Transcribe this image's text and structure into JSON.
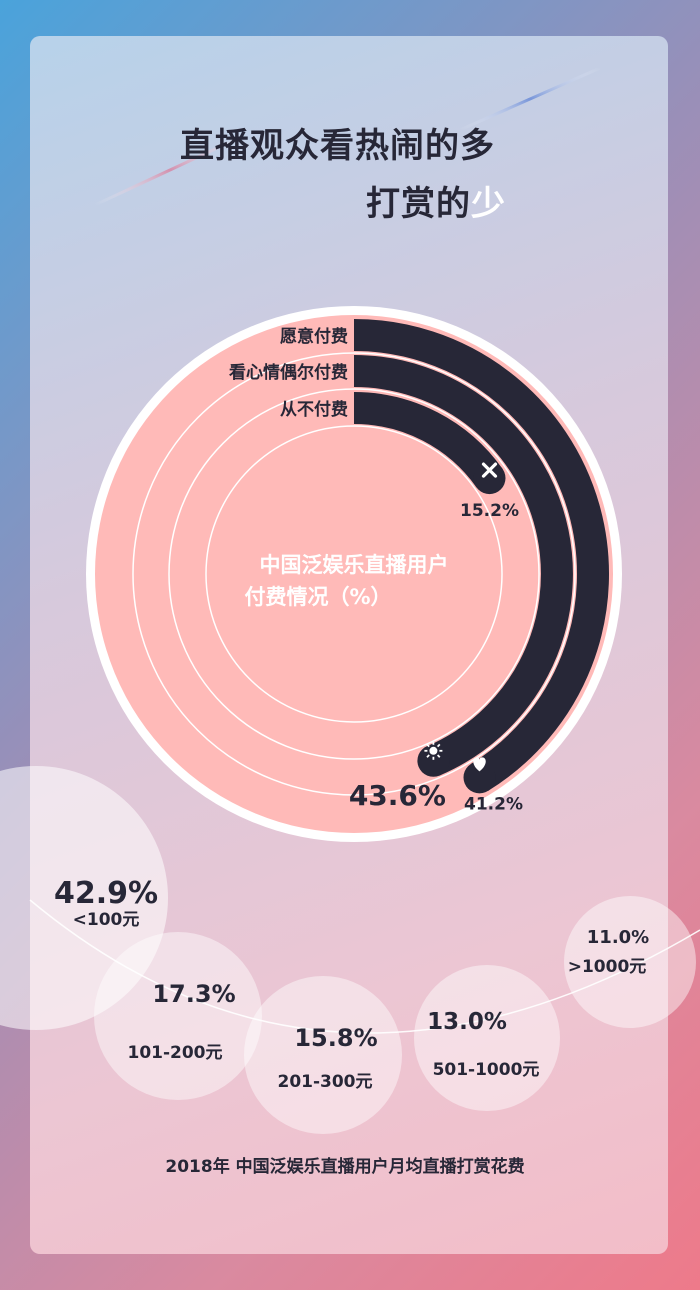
{
  "title": {
    "line1": "直播观众看热闹的多",
    "line2_prefix": "打赏的",
    "line2_highlight": "少"
  },
  "colors": {
    "accent_dark": "#272737",
    "ring_fill": "#ffbab8",
    "white": "#ffffff"
  },
  "chart_data": [
    {
      "type": "radial_bar",
      "title": "中国泛娱乐直播用户付费情况（%）",
      "title_lines": [
        "中国泛娱乐直播用户",
        "付费情况（%）"
      ],
      "series": [
        {
          "name": "愿意付费",
          "value": 41.2,
          "label": "41.2%",
          "icon": "heart-icon"
        },
        {
          "name": "看心情偶尔付费",
          "value": 43.6,
          "label": "43.6%",
          "icon": "sun-icon"
        },
        {
          "name": "从不付费",
          "value": 15.2,
          "label": "15.2%",
          "icon": "close-icon"
        }
      ],
      "max": 100
    },
    {
      "type": "bubble",
      "title": "2018年 中国泛娱乐直播用户月均直播打赏花费",
      "categories": [
        "<100元",
        "101-200元",
        "201-300元",
        "501-1000元",
        ">1000元"
      ],
      "values": [
        42.9,
        17.3,
        15.8,
        13.0,
        11.0
      ],
      "labels": [
        "42.9%",
        "17.3%",
        "15.8%",
        "13.0%",
        "11.0%"
      ]
    }
  ]
}
